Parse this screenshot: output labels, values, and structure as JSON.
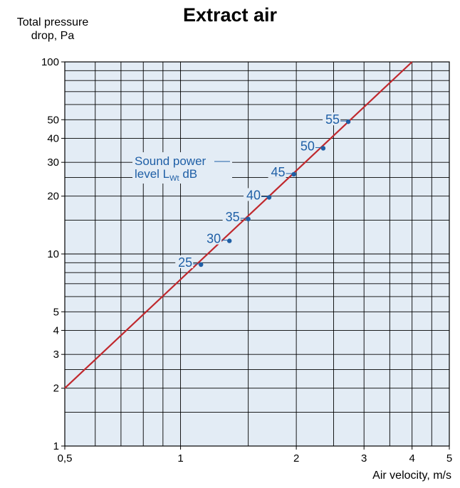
{
  "chart_data": {
    "type": "line",
    "title": "Extract air",
    "ylabel_line1": "Total pressure",
    "ylabel_line2": "drop, Pa",
    "xlabel": "Air velocity, m/s",
    "xscale": "log",
    "yscale": "log",
    "xlim": [
      0.5,
      5
    ],
    "ylim": [
      1,
      100
    ],
    "grid": true,
    "x_ticks": [
      0.5,
      1,
      2,
      3,
      4,
      5
    ],
    "x_tick_labels": [
      "0,5",
      "1",
      "2",
      "3",
      "4",
      "5"
    ],
    "y_ticks": [
      1,
      2,
      3,
      4,
      5,
      10,
      20,
      30,
      40,
      50,
      100
    ],
    "y_tick_labels": [
      "1",
      "2",
      "3",
      "4",
      "5",
      "10",
      "20",
      "30",
      "40",
      "50",
      "100"
    ],
    "x_grid": [
      0.5,
      0.6,
      0.7,
      0.8,
      0.9,
      1,
      1.5,
      2,
      2.5,
      3,
      3.5,
      4,
      4.5,
      5
    ],
    "y_grid": [
      1,
      1.5,
      2,
      2.5,
      3,
      4,
      5,
      6,
      7,
      8,
      9,
      10,
      15,
      20,
      25,
      30,
      40,
      50,
      60,
      70,
      80,
      90,
      100
    ],
    "line": {
      "color": "#c0282d",
      "x": [
        0.5,
        4
      ],
      "y": [
        2,
        100
      ]
    },
    "annotation": {
      "line1": "Sound power",
      "line2_main": "level L",
      "line2_sub": "Wt",
      "line2_end": " dB"
    },
    "points_label": "Sound power level LWt dB",
    "points": [
      {
        "label": "25",
        "x": 1.13,
        "y": 8.8
      },
      {
        "label": "30",
        "x": 1.34,
        "y": 11.7
      },
      {
        "label": "35",
        "x": 1.5,
        "y": 15.2
      },
      {
        "label": "40",
        "x": 1.7,
        "y": 19.7
      },
      {
        "label": "45",
        "x": 1.97,
        "y": 26
      },
      {
        "label": "50",
        "x": 2.35,
        "y": 35.5
      },
      {
        "label": "55",
        "x": 2.73,
        "y": 48.8
      }
    ],
    "colors": {
      "plot_bg": "#e3ecf5",
      "grid": "#000000",
      "line": "#c0282d",
      "points": "#1f5fa6"
    }
  }
}
